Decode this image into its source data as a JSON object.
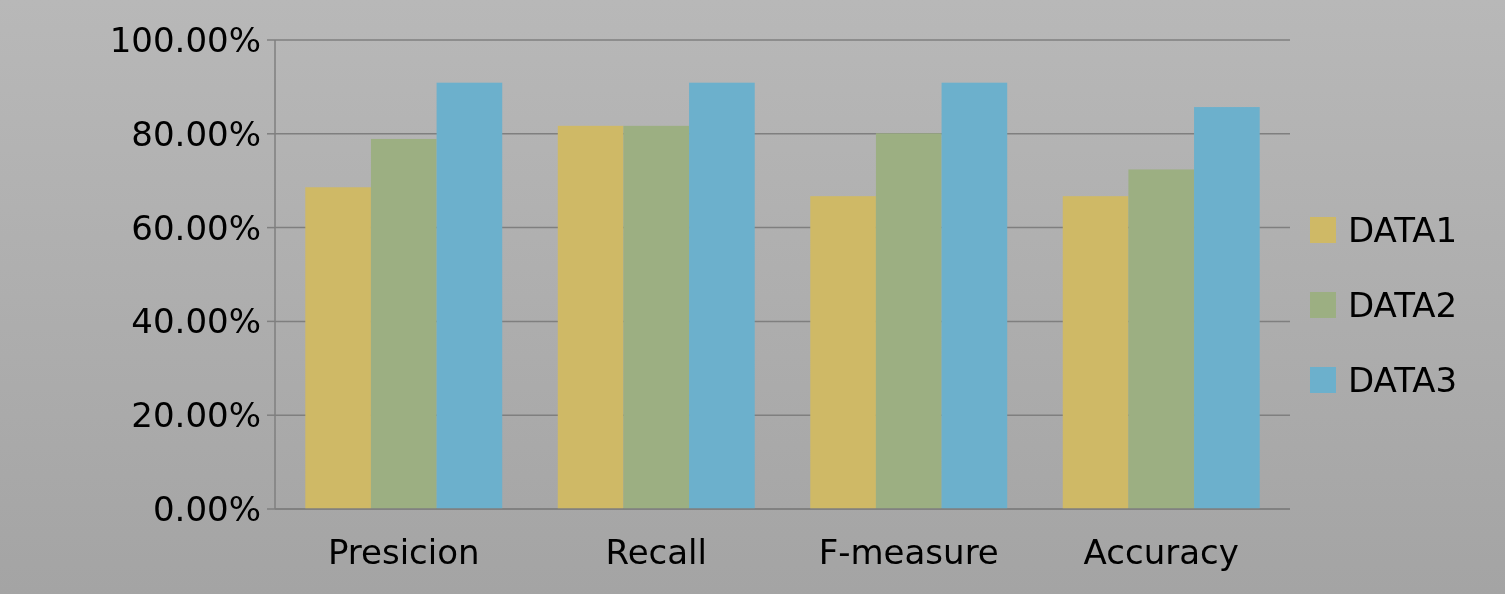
{
  "chart_data": {
    "type": "bar",
    "categories": [
      "Presicion",
      "Recall",
      "F-measure",
      "Accuracy"
    ],
    "series": [
      {
        "name": "DATA1",
        "color": "#cfb966",
        "values": [
          68.6,
          81.7,
          66.7,
          66.7
        ]
      },
      {
        "name": "DATA2",
        "color": "#9caf82",
        "values": [
          78.9,
          81.7,
          80.1,
          72.4
        ]
      },
      {
        "name": "DATA3",
        "color": "#6cb0cc",
        "values": [
          90.9,
          90.9,
          90.9,
          85.7
        ]
      }
    ],
    "ylim": [
      0,
      100
    ],
    "yticks": [
      {
        "value": 0,
        "label": "0.00%"
      },
      {
        "value": 20,
        "label": "20.00%"
      },
      {
        "value": 40,
        "label": "40.00%"
      },
      {
        "value": 60,
        "label": "60.00%"
      },
      {
        "value": 80,
        "label": "80.00%"
      },
      {
        "value": 100,
        "label": "100.00%"
      }
    ],
    "grid": "y",
    "legend": "right"
  }
}
